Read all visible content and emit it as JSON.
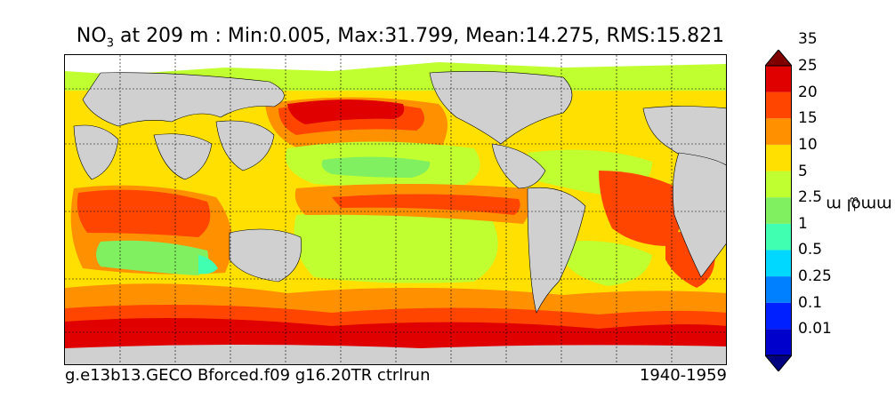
{
  "title": {
    "prefix": "NO",
    "subscript": "3",
    "text": " at 209 m : Min:0.005, Max:31.799, Mean:14.275, RMS:15.821"
  },
  "footer": {
    "left": "g.e13b13.GECO Bforced.f09 g16.20TR ctrlrun",
    "right": "1940-1959"
  },
  "colorbar": {
    "label": "mmol m",
    "label_exponent": "−3",
    "levels": [
      "0.01",
      "0.1",
      "0.25",
      "0.5",
      "1",
      "2.5",
      "5",
      "10",
      "15",
      "20",
      "25",
      "35"
    ],
    "colors": [
      "#000080",
      "#0000cd",
      "#0020ff",
      "#0080ff",
      "#00d8ff",
      "#40ffb0",
      "#80f060",
      "#c0ff30",
      "#ffe000",
      "#ff9000",
      "#ff4500",
      "#e00000",
      "#800000"
    ]
  },
  "map": {
    "land_color": "#d0d0d0",
    "missing_color": "#ffffff",
    "gridlines": "dashed"
  }
}
